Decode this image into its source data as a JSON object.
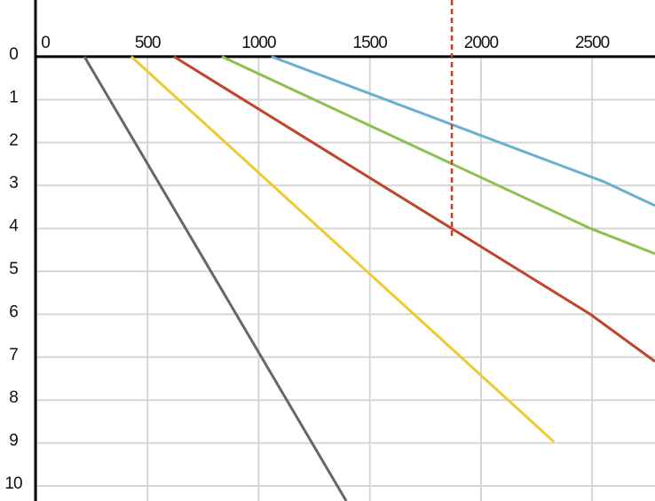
{
  "chart_data": {
    "type": "line",
    "xlim": [
      0,
      2783
    ],
    "ylim": [
      -1.32,
      10.35
    ],
    "y_inverted": true,
    "x_axis_position": "top",
    "xticks": [
      0,
      500,
      1000,
      1500,
      2000,
      2500
    ],
    "yticks": [
      0,
      1,
      2,
      3,
      4,
      5,
      6,
      7,
      8,
      9,
      10
    ],
    "grid": true,
    "series": [
      {
        "color": "#666666",
        "x": [
          216,
          1394
        ],
        "values": [
          0,
          10.35
        ]
      },
      {
        "color": "#f0c930",
        "x": [
          427,
          2328
        ],
        "values": [
          0,
          8.97
        ]
      },
      {
        "color": "#c0432b",
        "x": [
          619,
          2492,
          2783
        ],
        "values": [
          0,
          6,
          7.1
        ]
      },
      {
        "color": "#8cc152",
        "x": [
          835,
          2492,
          2783
        ],
        "values": [
          0,
          4,
          4.59
        ]
      },
      {
        "color": "#6aaed0",
        "x": [
          1058,
          2552,
          2783
        ],
        "values": [
          0,
          2.91,
          3.47
        ]
      },
      {
        "color": "#c0432b",
        "dashed": true,
        "x": [
          1869,
          1869
        ],
        "values": [
          -1.32,
          4.21
        ]
      }
    ]
  }
}
